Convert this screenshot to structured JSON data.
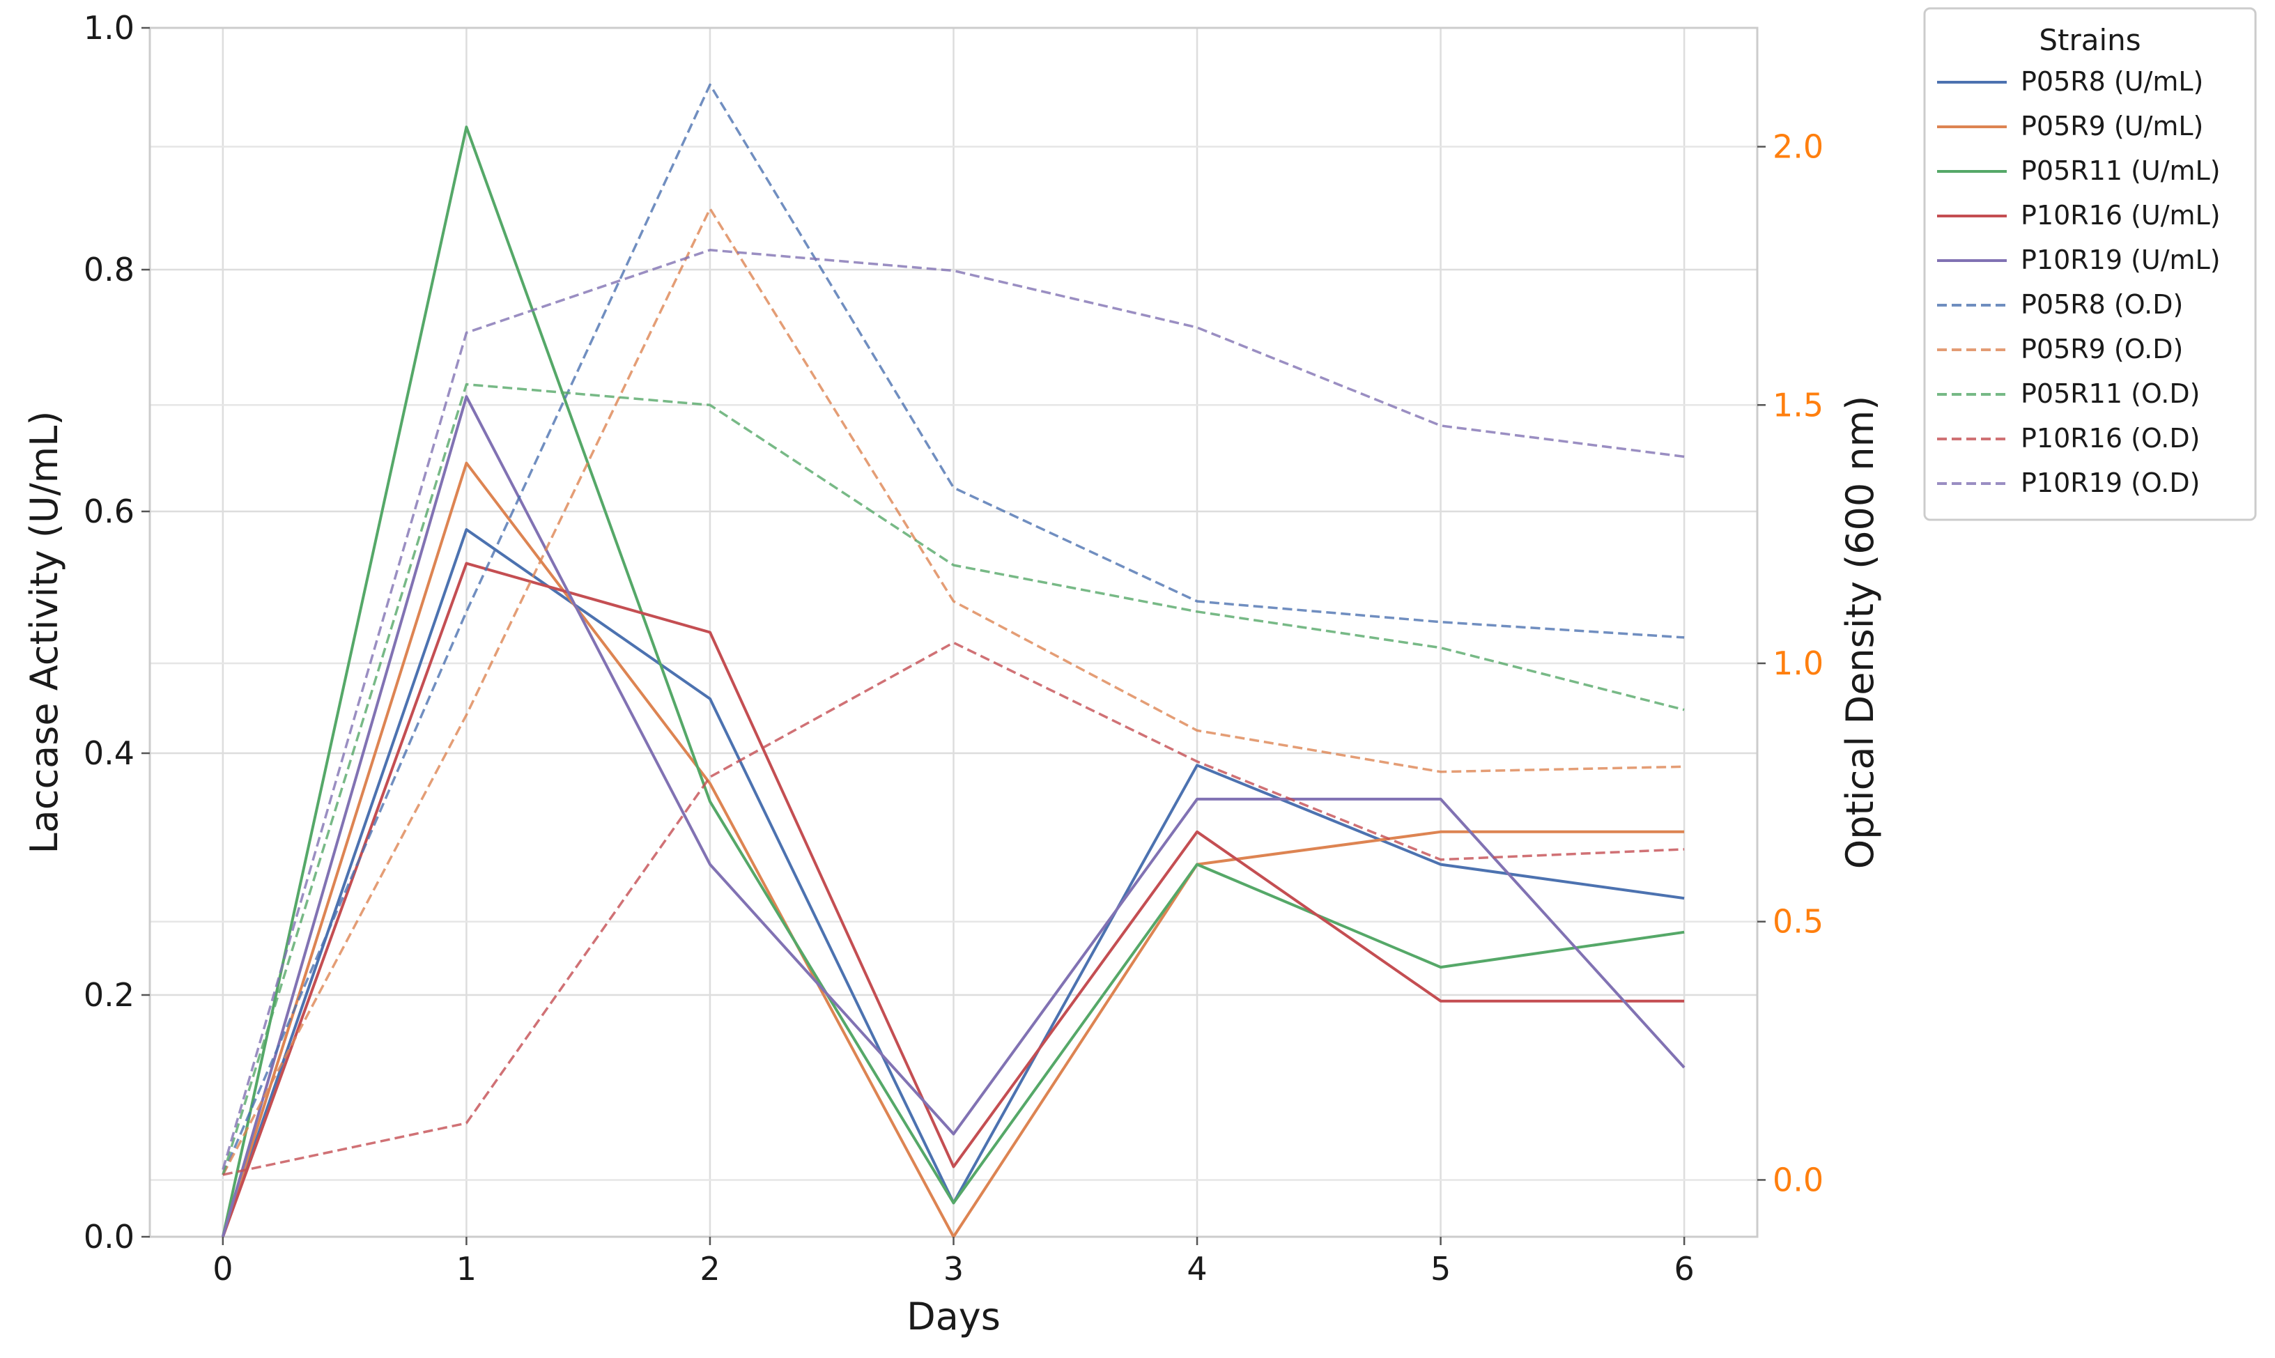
{
  "chart_data": {
    "type": "line",
    "x": [
      0,
      1,
      2,
      3,
      4,
      5,
      6
    ],
    "xlabel": "Days",
    "ylabel_left": "Laccase Activity (U/mL)",
    "ylabel_right": "Optical Density (600 nm)",
    "ylim_left": [
      0,
      1.0
    ],
    "ylim_right": [
      -0.11,
      2.23
    ],
    "xlim": [
      -0.3,
      6.3
    ],
    "yticks_left": [
      "0.0",
      "0.2",
      "0.4",
      "0.6",
      "0.8",
      "1.0"
    ],
    "yticks_right": [
      "0.0",
      "0.5",
      "1.0",
      "1.5",
      "2.0"
    ],
    "xticks": [
      "0",
      "1",
      "2",
      "3",
      "4",
      "5",
      "6"
    ],
    "right_axis_color": "#ff7f0e",
    "grid": true,
    "legend": {
      "title": "Strains",
      "placement": "outside-upper-right"
    },
    "series": [
      {
        "name": "P05R8 (U/mL)",
        "axis": "left",
        "style": "solid",
        "color": "#4c72b0",
        "values": [
          0.0,
          0.585,
          0.445,
          0.028,
          0.39,
          0.308,
          0.28
        ]
      },
      {
        "name": "P05R9 (U/mL)",
        "axis": "left",
        "style": "solid",
        "color": "#dd8452",
        "values": [
          0.0,
          0.64,
          0.375,
          0.0,
          0.308,
          0.335,
          0.335
        ]
      },
      {
        "name": "P05R11 (U/mL)",
        "axis": "left",
        "style": "solid",
        "color": "#55a868",
        "values": [
          0.0,
          0.918,
          0.36,
          0.028,
          0.308,
          0.223,
          0.252
        ]
      },
      {
        "name": "P10R16 (U/mL)",
        "axis": "left",
        "style": "solid",
        "color": "#c44e52",
        "values": [
          0.0,
          0.557,
          0.5,
          0.058,
          0.335,
          0.195,
          0.195
        ]
      },
      {
        "name": "P10R19 (U/mL)",
        "axis": "left",
        "style": "solid",
        "color": "#8172b3",
        "values": [
          0.0,
          0.695,
          0.308,
          0.085,
          0.362,
          0.362,
          0.14
        ]
      },
      {
        "name": "P05R8 (O.D)",
        "axis": "right",
        "style": "dashed",
        "color": "#4c72b0",
        "values": [
          0.01,
          1.1,
          2.12,
          1.34,
          1.12,
          1.08,
          1.05
        ]
      },
      {
        "name": "P05R9 (O.D)",
        "axis": "right",
        "style": "dashed",
        "color": "#dd8452",
        "values": [
          0.01,
          0.9,
          1.88,
          1.12,
          0.87,
          0.79,
          0.8
        ]
      },
      {
        "name": "P05R11 (O.D)",
        "axis": "right",
        "style": "dashed",
        "color": "#55a868",
        "values": [
          0.01,
          1.54,
          1.5,
          1.19,
          1.1,
          1.03,
          0.91
        ]
      },
      {
        "name": "P10R16 (O.D)",
        "axis": "right",
        "style": "dashed",
        "color": "#c44e52",
        "values": [
          0.01,
          0.11,
          0.78,
          1.04,
          0.81,
          0.62,
          0.64
        ]
      },
      {
        "name": "P10R19 (O.D)",
        "axis": "right",
        "style": "dashed",
        "color": "#8172b3",
        "values": [
          0.02,
          1.64,
          1.8,
          1.76,
          1.65,
          1.46,
          1.4
        ]
      }
    ]
  }
}
